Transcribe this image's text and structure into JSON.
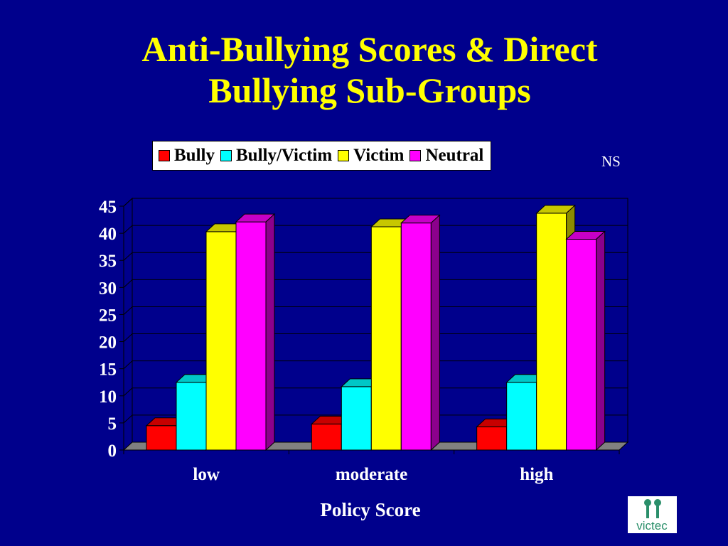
{
  "slide": {
    "title_line1": "Anti-Bullying Scores & Direct",
    "title_line2": "Bullying Sub-Groups",
    "note": "NS",
    "logo_text": "victec"
  },
  "chart_data": {
    "type": "bar",
    "style": "3d-clustered-column",
    "title": "",
    "xlabel": "Policy Score",
    "ylabel": "",
    "categories": [
      "low",
      "moderate",
      "high"
    ],
    "series": [
      {
        "name": "Bully",
        "color": "#ff0000",
        "values": [
          4.5,
          4.8,
          4.3
        ]
      },
      {
        "name": "Bully/Victim",
        "color": "#00ffff",
        "values": [
          12.5,
          11.7,
          12.5
        ]
      },
      {
        "name": "Victim",
        "color": "#ffff00",
        "values": [
          40.3,
          41.2,
          43.7
        ]
      },
      {
        "name": "Neutral",
        "color": "#ff00ff",
        "values": [
          42.1,
          41.9,
          38.9
        ]
      }
    ],
    "ylim": [
      0,
      45
    ],
    "yticks": [
      0,
      5,
      10,
      15,
      20,
      25,
      30,
      35,
      40,
      45
    ],
    "grid": true,
    "legend_position": "top"
  },
  "colors": {
    "background": "#00008c",
    "title": "#ffff00",
    "axis_text": "#ffffff",
    "plot_area": "#00008c"
  }
}
